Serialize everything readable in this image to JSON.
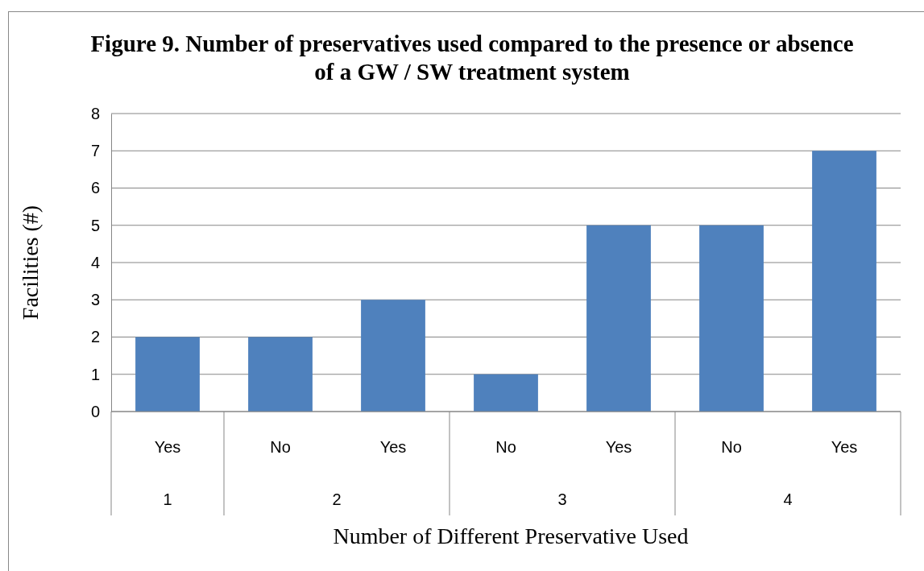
{
  "chart_data": {
    "type": "bar",
    "title": "Figure 9. Number of preservatives used compared to the presence or absence of a GW / SW treatment system",
    "xlabel": "Number of Different Preservative Used",
    "ylabel": "Facilities (#)",
    "categories": [
      "Yes",
      "No",
      "Yes",
      "No",
      "Yes",
      "No",
      "Yes"
    ],
    "values": [
      2,
      2,
      3,
      1,
      5,
      5,
      7
    ],
    "color": "#4f81bd",
    "ylim": [
      0,
      8
    ],
    "yticks": [
      0,
      1,
      2,
      3,
      4,
      5,
      6,
      7,
      8
    ],
    "grid": "y",
    "annotations": [
      "1",
      "2",
      "3",
      "4"
    ]
  }
}
